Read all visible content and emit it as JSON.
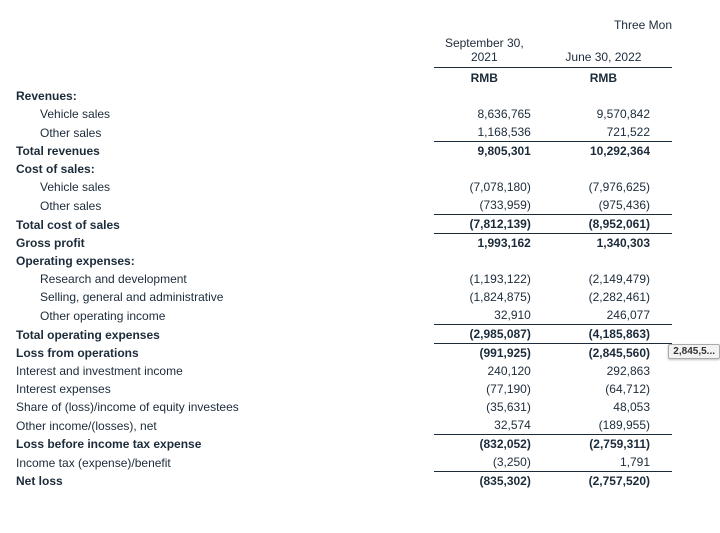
{
  "header": {
    "super": "Three Mon",
    "periods": [
      "September 30, 2021",
      "June 30, 2022"
    ],
    "currency": "RMB"
  },
  "tooltip": "2,845,5...",
  "rows": [
    {
      "label": "Revenues:",
      "indent": 0,
      "bold": true,
      "v": [
        "",
        ""
      ]
    },
    {
      "label": "Vehicle sales",
      "indent": 1,
      "bold": false,
      "v": [
        "8,636,765",
        "9,570,842"
      ]
    },
    {
      "label": "Other sales",
      "indent": 1,
      "bold": false,
      "v": [
        "1,168,536",
        "721,522"
      ],
      "bline": true
    },
    {
      "label": "Total revenues",
      "indent": 0,
      "bold": true,
      "v": [
        "9,805,301",
        "10,292,364"
      ],
      "tline": true
    },
    {
      "label": "Cost of sales:",
      "indent": 0,
      "bold": true,
      "v": [
        "",
        ""
      ]
    },
    {
      "label": "Vehicle sales",
      "indent": 1,
      "bold": false,
      "v": [
        "(7,078,180)",
        "(7,976,625)"
      ]
    },
    {
      "label": "Other sales",
      "indent": 1,
      "bold": false,
      "v": [
        "(733,959)",
        "(975,436)"
      ],
      "bline": true
    },
    {
      "label": "Total cost of sales",
      "indent": 0,
      "bold": true,
      "v": [
        "(7,812,139)",
        "(8,952,061)"
      ],
      "tline": true,
      "bline": true
    },
    {
      "label": "Gross profit",
      "indent": 0,
      "bold": true,
      "v": [
        "1,993,162",
        "1,340,303"
      ],
      "tline": true
    },
    {
      "label": "Operating expenses:",
      "indent": 0,
      "bold": true,
      "v": [
        "",
        ""
      ]
    },
    {
      "label": "Research and development",
      "indent": 1,
      "bold": false,
      "v": [
        "(1,193,122)",
        "(2,149,479)"
      ]
    },
    {
      "label": "Selling, general and administrative",
      "indent": 1,
      "bold": false,
      "v": [
        "(1,824,875)",
        "(2,282,461)"
      ]
    },
    {
      "label": "Other operating income",
      "indent": 1,
      "bold": false,
      "v": [
        "32,910",
        "246,077"
      ],
      "bline": true
    },
    {
      "label": "Total operating expenses",
      "indent": 0,
      "bold": true,
      "v": [
        "(2,985,087)",
        "(4,185,863)"
      ],
      "tline": true,
      "bline": true
    },
    {
      "label": "Loss from operations",
      "indent": 0,
      "bold": true,
      "v": [
        "(991,925)",
        "(2,845,560)"
      ],
      "tline": true,
      "tooltipCell": 1
    },
    {
      "label": "Interest and investment income",
      "indent": 0,
      "bold": false,
      "v": [
        "240,120",
        "292,863"
      ]
    },
    {
      "label": "Interest expenses",
      "indent": 0,
      "bold": false,
      "v": [
        "(77,190)",
        "(64,712)"
      ]
    },
    {
      "label": "Share of (loss)/income of equity investees",
      "indent": 0,
      "bold": false,
      "v": [
        "(35,631)",
        "48,053"
      ]
    },
    {
      "label": "Other income/(losses), net",
      "indent": 0,
      "bold": false,
      "v": [
        "32,574",
        "(189,955)"
      ],
      "bline": true
    },
    {
      "label": "Loss before income tax expense",
      "indent": 0,
      "bold": true,
      "v": [
        "(832,052)",
        "(2,759,311)"
      ],
      "tline": true
    },
    {
      "label": "Income tax (expense)/benefit",
      "indent": 0,
      "bold": false,
      "v": [
        "(3,250)",
        "1,791"
      ],
      "bline": true
    },
    {
      "label": "Net loss",
      "indent": 0,
      "bold": true,
      "v": [
        "(835,302)",
        "(2,757,520)"
      ],
      "tline": true
    }
  ]
}
